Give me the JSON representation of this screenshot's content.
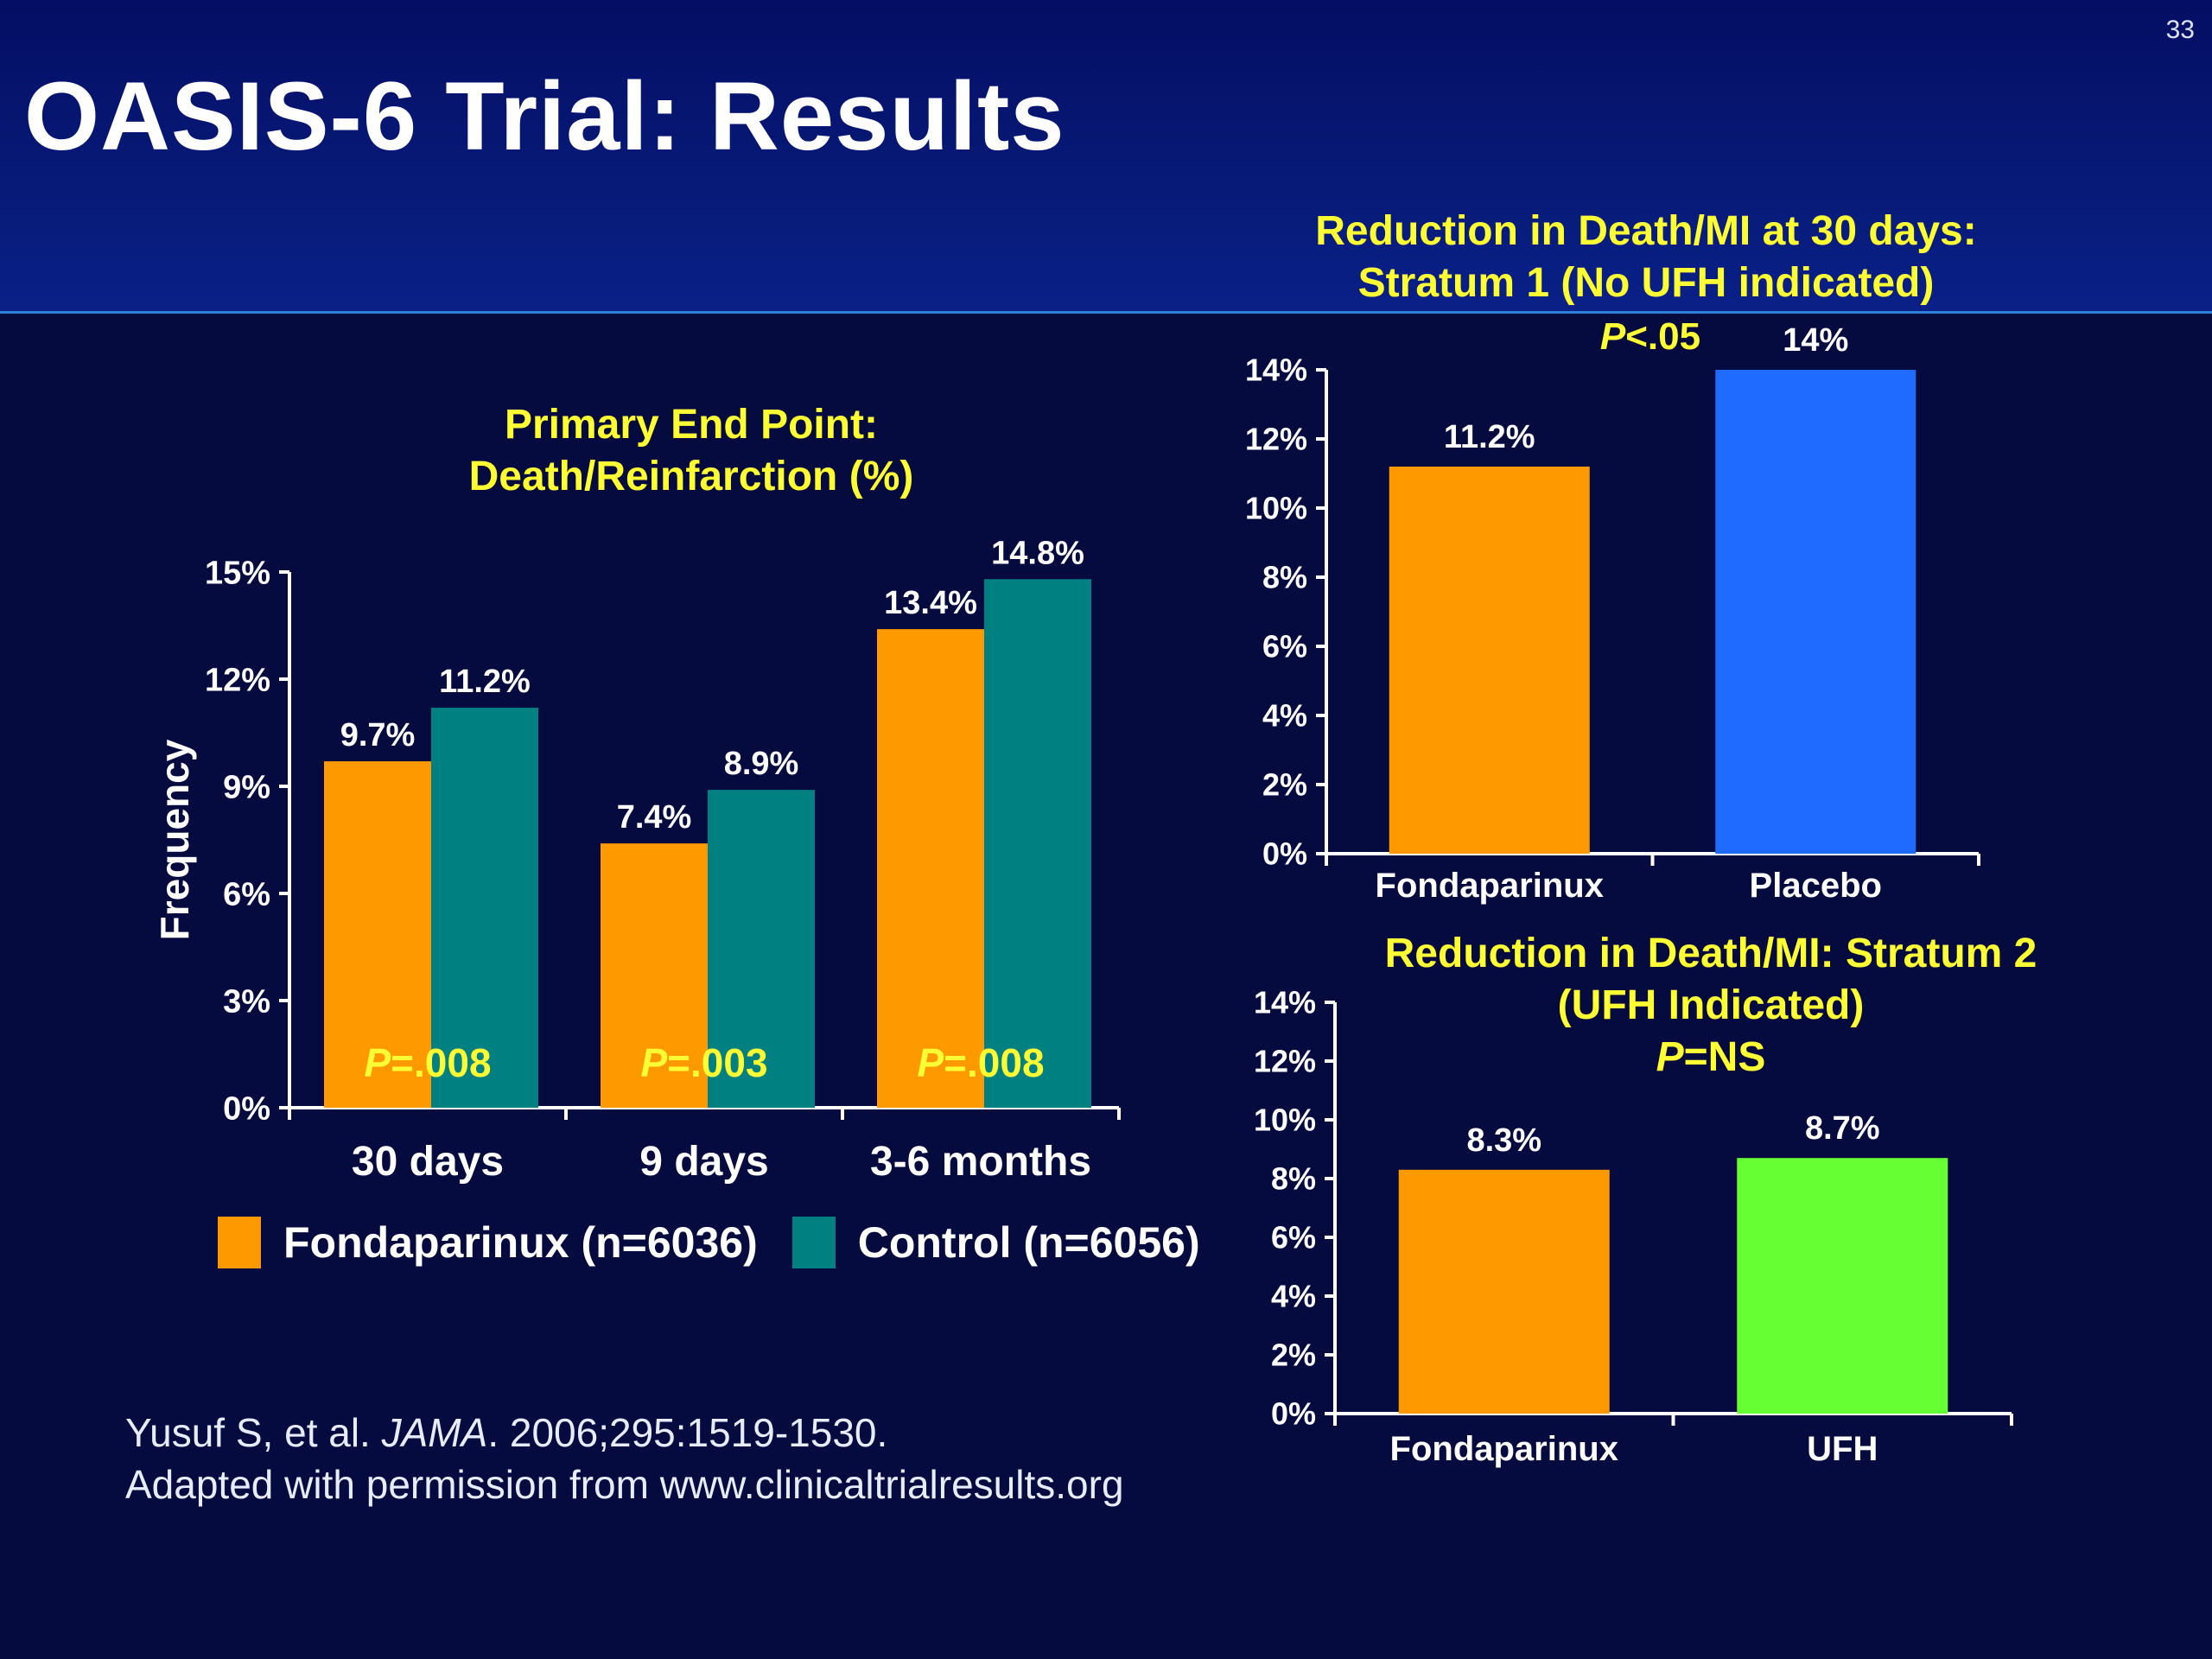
{
  "slide": {
    "number": "33",
    "title": "OASIS-6 Trial: Results",
    "background": "#050b3f",
    "header_color": "#071a78"
  },
  "legend": {
    "items": [
      {
        "label": "Fondaparinux (n=6036)",
        "color": "#ff9900"
      },
      {
        "label": "Control (n=6056)",
        "color": "#008080"
      }
    ]
  },
  "citation": {
    "author": "Yusuf S, et al. ",
    "journal": "JAMA",
    "details": ". 2006;295:1519-1530.",
    "line2": "Adapted with permission from www.clinicaltrialresults.org"
  },
  "chart_data": [
    {
      "id": "primary",
      "type": "bar",
      "title_line1": "Primary End Point:",
      "title_line2": "Death/Reinfarction (%)",
      "ylabel": "Frequency",
      "ylim": [
        0,
        15
      ],
      "yticks": [
        "0%",
        "3%",
        "6%",
        "9%",
        "12%",
        "15%"
      ],
      "categories": [
        "30 days",
        "9 days",
        "3-6 months"
      ],
      "series": [
        {
          "name": "Fondaparinux (n=6036)",
          "color": "#ff9900",
          "values": [
            9.7,
            7.4,
            13.4
          ],
          "labels": [
            "9.7%",
            "7.4%",
            "13.4%"
          ]
        },
        {
          "name": "Control (n=6056)",
          "color": "#008080",
          "values": [
            11.2,
            8.9,
            14.8
          ],
          "labels": [
            "11.2%",
            "8.9%",
            "14.8%"
          ]
        }
      ],
      "p_values": [
        "=.008",
        "=.003",
        "=.008"
      ],
      "grid": false,
      "legend_position": "bottom"
    },
    {
      "id": "stratum1",
      "type": "bar",
      "title_line1": "Reduction in Death/MI at 30 days:",
      "title_line2": "Stratum 1 (No UFH indicated)",
      "p_value": "<.05",
      "ylim": [
        0,
        14
      ],
      "yticks": [
        "0%",
        "2%",
        "4%",
        "6%",
        "8%",
        "10%",
        "12%",
        "14%"
      ],
      "categories": [
        "Fondaparinux",
        "Placebo"
      ],
      "values": [
        11.2,
        14
      ],
      "labels": [
        "11.2%",
        "14%"
      ],
      "colors": [
        "#ff9900",
        "#1f6bff"
      ],
      "grid": false
    },
    {
      "id": "stratum2",
      "type": "bar",
      "title_line1": "Reduction in Death/MI: Stratum 2",
      "title_line2": "(UFH Indicated)",
      "p_value": "=NS",
      "ylim": [
        0,
        14
      ],
      "yticks": [
        "0%",
        "2%",
        "4%",
        "6%",
        "8%",
        "10%",
        "12%",
        "14%"
      ],
      "categories": [
        "Fondaparinux",
        "UFH"
      ],
      "values": [
        8.3,
        8.7
      ],
      "labels": [
        "8.3%",
        "8.7%"
      ],
      "colors": [
        "#ff9900",
        "#66ff33"
      ],
      "grid": false
    }
  ]
}
